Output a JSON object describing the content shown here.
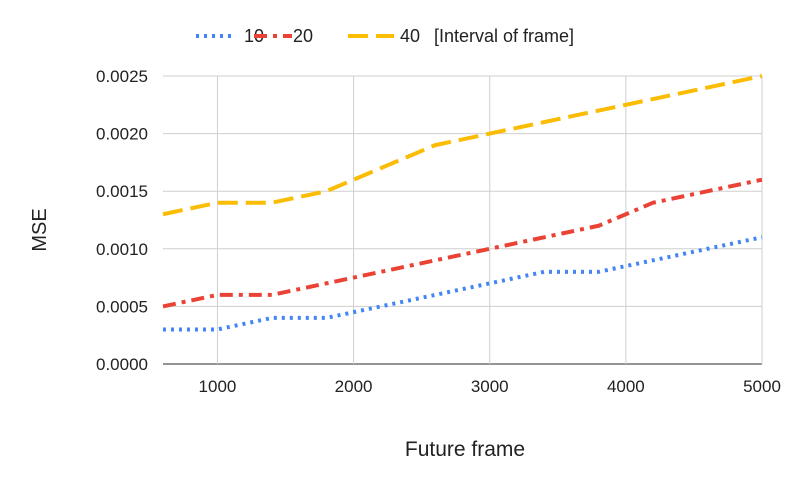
{
  "chart_data": {
    "type": "line",
    "title": "",
    "xlabel": "Future frame",
    "ylabel": "MSE",
    "legend_title": "[Interval of frame]",
    "legend_position": "top",
    "grid": true,
    "xlim": [
      600,
      5000
    ],
    "ylim": [
      0,
      0.0025
    ],
    "xticks": [
      1000,
      2000,
      3000,
      4000,
      5000
    ],
    "yticks": [
      0,
      0.0005,
      0.001,
      0.0015,
      0.002,
      0.0025
    ],
    "xtick_labels": [
      "1000",
      "2000",
      "3000",
      "4000",
      "5000"
    ],
    "ytick_labels": [
      "0.0000",
      "0.0005",
      "0.0010",
      "0.0015",
      "0.0020",
      "0.0025"
    ],
    "x": [
      600,
      1000,
      1400,
      1800,
      2200,
      2600,
      3000,
      3400,
      3800,
      4200,
      4600,
      5000
    ],
    "series": [
      {
        "name": "10",
        "color": "#4285f4",
        "dash": "dotted",
        "values": [
          0.0003,
          0.0003,
          0.0004,
          0.0004,
          0.0005,
          0.0006,
          0.0007,
          0.0008,
          0.0008,
          0.0009,
          0.001,
          0.0011
        ]
      },
      {
        "name": "20",
        "color": "#ea4335",
        "dash": "dash-dot",
        "values": [
          0.0005,
          0.0006,
          0.0006,
          0.0007,
          0.0008,
          0.0009,
          0.001,
          0.0011,
          0.0012,
          0.0014,
          0.0015,
          0.0016
        ]
      },
      {
        "name": "40",
        "color": "#fbbc04",
        "dash": "long-dash",
        "values": [
          0.0013,
          0.0014,
          0.0014,
          0.0015,
          0.0017,
          0.0019,
          0.002,
          0.0021,
          0.0022,
          0.0023,
          0.0024,
          0.0025
        ]
      }
    ]
  }
}
